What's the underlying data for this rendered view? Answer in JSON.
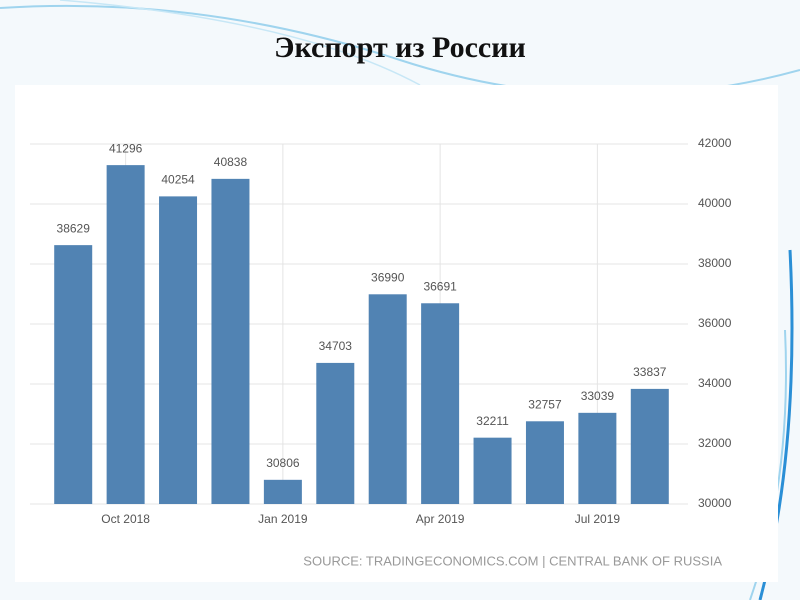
{
  "chart_data": {
    "type": "bar",
    "title": "Экспорт из России",
    "categories": [
      null,
      "Oct 2018",
      null,
      null,
      "Jan 2019",
      null,
      null,
      "Apr 2019",
      null,
      null,
      "Jul 2019",
      null
    ],
    "values": [
      38629,
      41296,
      40254,
      40838,
      30806,
      34703,
      36990,
      36691,
      32211,
      32757,
      33039,
      33837
    ],
    "color": "#5183b3",
    "ylim": [
      30000,
      42000
    ],
    "yticks": [
      30000,
      32000,
      34000,
      36000,
      38000,
      40000,
      42000
    ],
    "grid": true,
    "source": "SOURCE: TRADINGECONOMICS.COM | CENTRAL BANK OF RUSSIA"
  }
}
